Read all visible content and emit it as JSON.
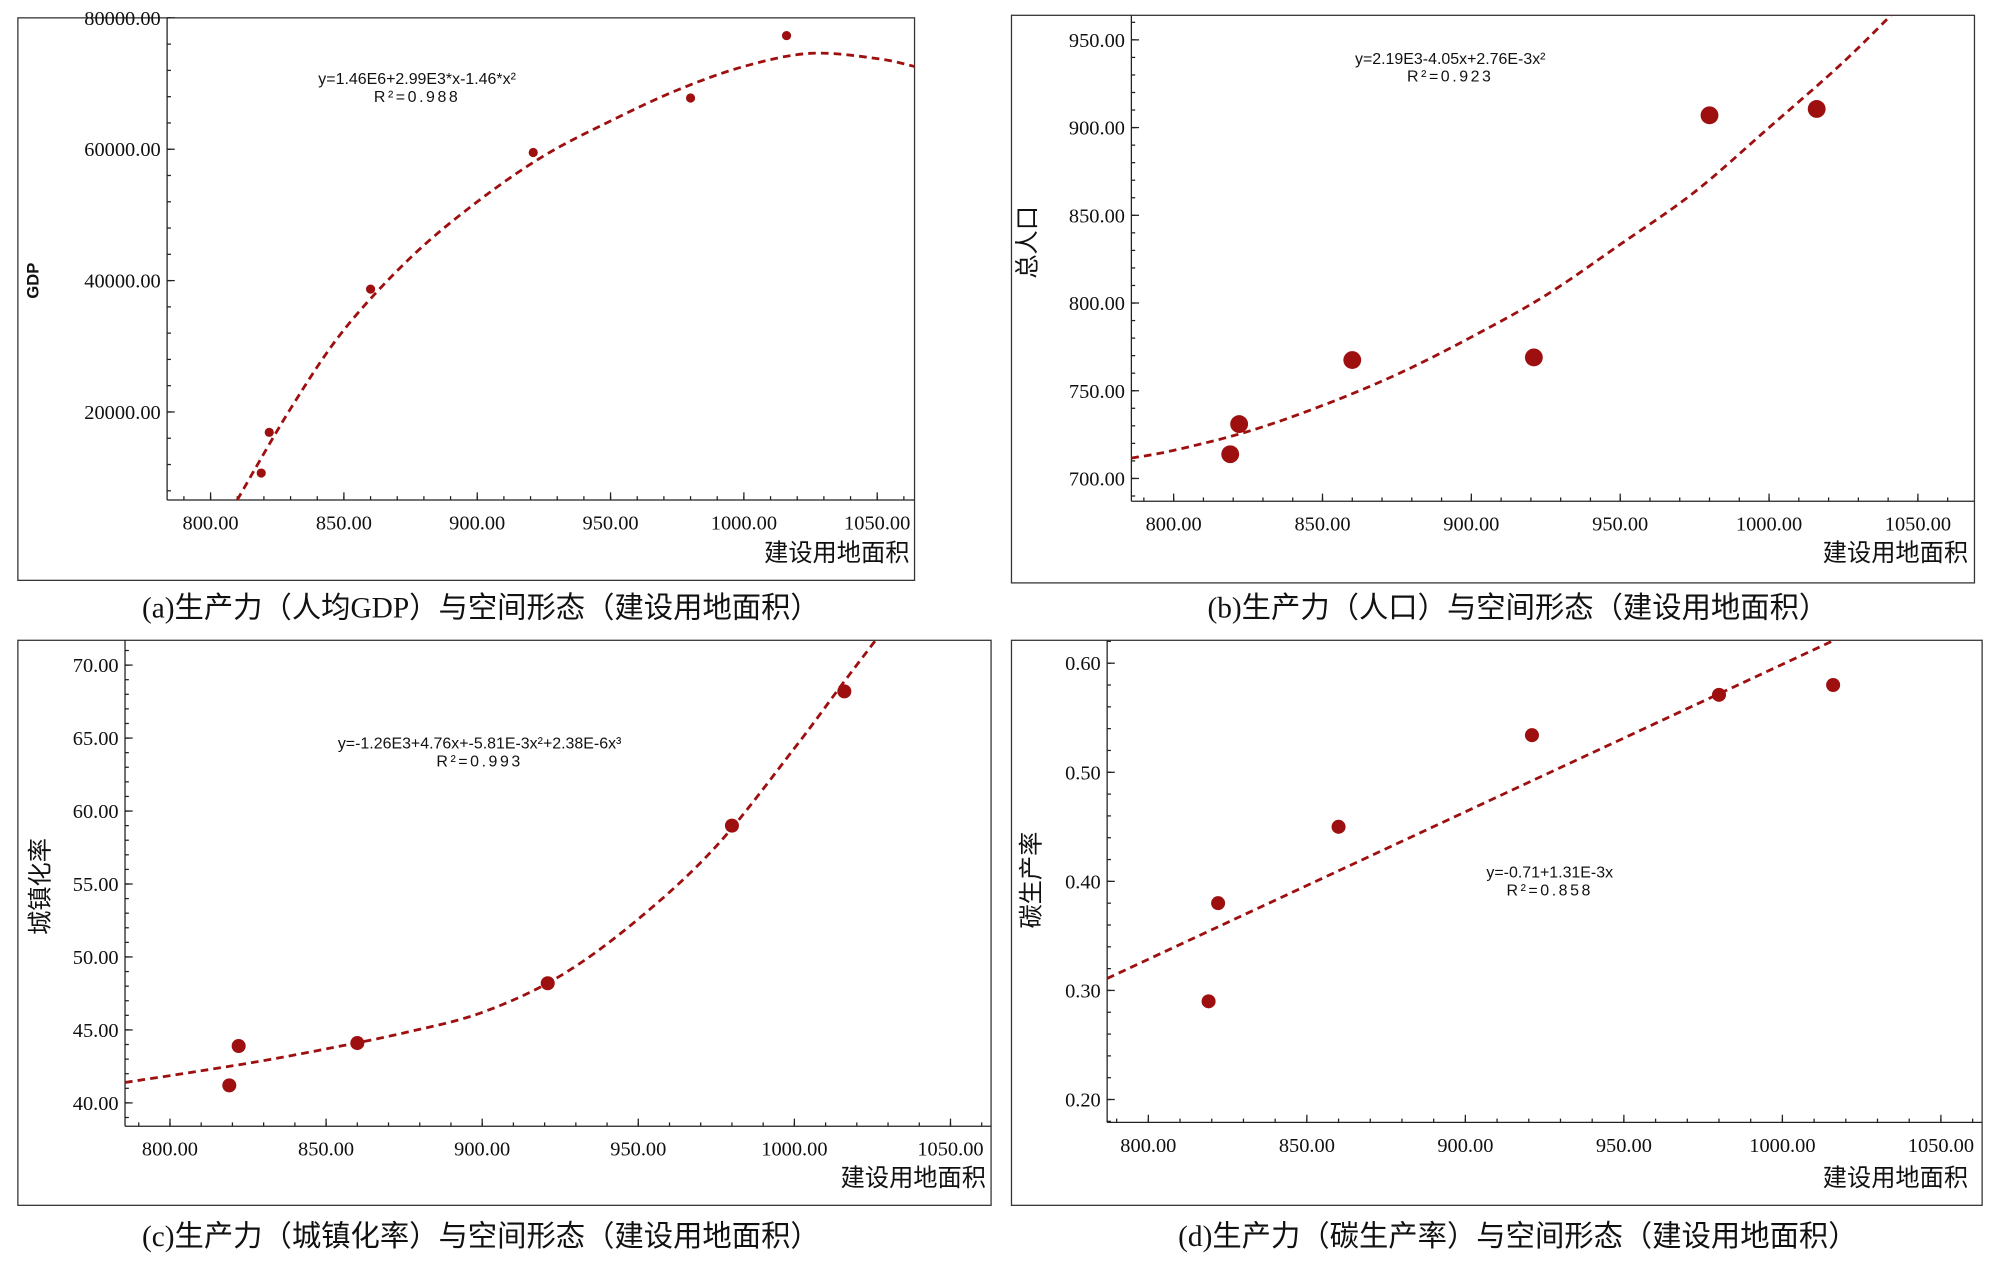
{
  "colors": {
    "marker": "#9e0f0f",
    "fit_line": "#9e0f0f",
    "axis": "#222222"
  },
  "chart_data": [
    {
      "type": "scatter",
      "caption": "(a)生产力（人均GDP）与空间形态（建设用地面积）",
      "xlabel": "建设用地面积",
      "ylabel": "GDP",
      "equation": "y=1.46E6+2.99E3*x-1.46*x²",
      "r2_label": "R²=0.988",
      "xticks": [
        "800.00",
        "850.00",
        "900.00",
        "950.00",
        "1000.00",
        "1050.00"
      ],
      "yticks": [
        "20000.00",
        "40000.00",
        "60000.00",
        "80000.00"
      ],
      "xlim": [
        783.7,
        1064
      ],
      "ylim": [
        6600,
        80000
      ],
      "points": {
        "x": [
          819,
          822,
          860,
          921,
          980,
          1016
        ],
        "y": [
          10700,
          16900,
          38700,
          59500,
          67800,
          77300
        ]
      },
      "fit_type": "quadratic",
      "fit_curve": {
        "x": [
          810,
          830,
          850,
          875,
          900,
          925,
          950,
          975,
          1000,
          1025,
          1050,
          1064
        ],
        "y": [
          6600,
          20500,
          32500,
          43500,
          52000,
          59000,
          64300,
          69000,
          72600,
          74600,
          73800,
          72600
        ]
      }
    },
    {
      "type": "scatter",
      "caption": "(b)生产力（人口）与空间形态（建设用地面积）",
      "xlabel": "建设用地面积",
      "ylabel": "总人口",
      "equation": "y=2.19E3-4.05x+2.76E-3x²",
      "r2_label": "R²=0.923",
      "xticks": [
        "800.00",
        "850.00",
        "900.00",
        "950.00",
        "1000.00",
        "1050.00"
      ],
      "yticks": [
        "700.00",
        "750.00",
        "800.00",
        "850.00",
        "900.00",
        "950.00"
      ],
      "xlim": [
        785.8,
        1069
      ],
      "ylim": [
        687,
        964
      ],
      "points": {
        "x": [
          819,
          822,
          860,
          921,
          980,
          1016
        ],
        "y": [
          713.8,
          731,
          767.5,
          769,
          907,
          910.6
        ]
      },
      "fit_type": "quadratic",
      "fit_curve": {
        "x": [
          785.8,
          800,
          825,
          850,
          875,
          900,
          925,
          950,
          975,
          1000,
          1025,
          1045
        ],
        "y": [
          711.6,
          716,
          726.8,
          741.6,
          759.3,
          780.6,
          804.4,
          833.4,
          863.3,
          900,
          937.4,
          971
        ]
      }
    },
    {
      "type": "scatter",
      "caption": "(c)生产力（城镇化率）与空间形态（建设用地面积）",
      "xlabel": "建设用地面积",
      "ylabel": "城镇化率",
      "equation": "y=-1.26E3+4.76x+-5.81E-3x²+2.38E-6x³",
      "r2_label": "R²=0.993",
      "xticks": [
        "800.00",
        "850.00",
        "900.00",
        "950.00",
        "1000.00",
        "1050.00"
      ],
      "yticks": [
        "40.00",
        "45.00",
        "50.00",
        "55.00",
        "60.00",
        "65.00",
        "70.00"
      ],
      "xlim": [
        785.6,
        1063
      ],
      "ylim": [
        38.4,
        71.7
      ],
      "points": {
        "x": [
          819,
          822,
          860,
          921,
          980,
          1016
        ],
        "y": [
          41.2,
          43.9,
          44.1,
          48.2,
          59.0,
          68.2
        ]
      },
      "fit_type": "cubic",
      "fit_curve": {
        "x": [
          785.6,
          810,
          830,
          850,
          875,
          900,
          925,
          950,
          975,
          1000,
          1015,
          1026
        ],
        "y": [
          41.4,
          42.2,
          42.9,
          43.7,
          44.8,
          46.2,
          48.7,
          52.6,
          57.6,
          64.3,
          68.6,
          71.7
        ]
      }
    },
    {
      "type": "scatter",
      "caption": "(d)生产力（碳生产率）与空间形态（建设用地面积）",
      "xlabel": "建设用地面积",
      "ylabel": "碳生产率",
      "equation": "y=-0.71+1.31E-3x",
      "r2_label": "R²=0.858",
      "xticks": [
        "800.00",
        "850.00",
        "900.00",
        "950.00",
        "1000.00",
        "1050.00"
      ],
      "yticks": [
        "0.20",
        "0.30",
        "0.40",
        "0.50",
        "0.60"
      ],
      "xlim": [
        787,
        1063
      ],
      "ylim": [
        0.179,
        0.621
      ],
      "points": {
        "x": [
          819,
          822,
          860,
          921,
          980,
          1016
        ],
        "y": [
          0.29,
          0.38,
          0.45,
          0.534,
          0.571,
          0.58
        ]
      },
      "fit_type": "linear",
      "fit_curve": {
        "x": [
          787,
          1020
        ],
        "y": [
          0.311,
          0.626
        ]
      }
    }
  ]
}
